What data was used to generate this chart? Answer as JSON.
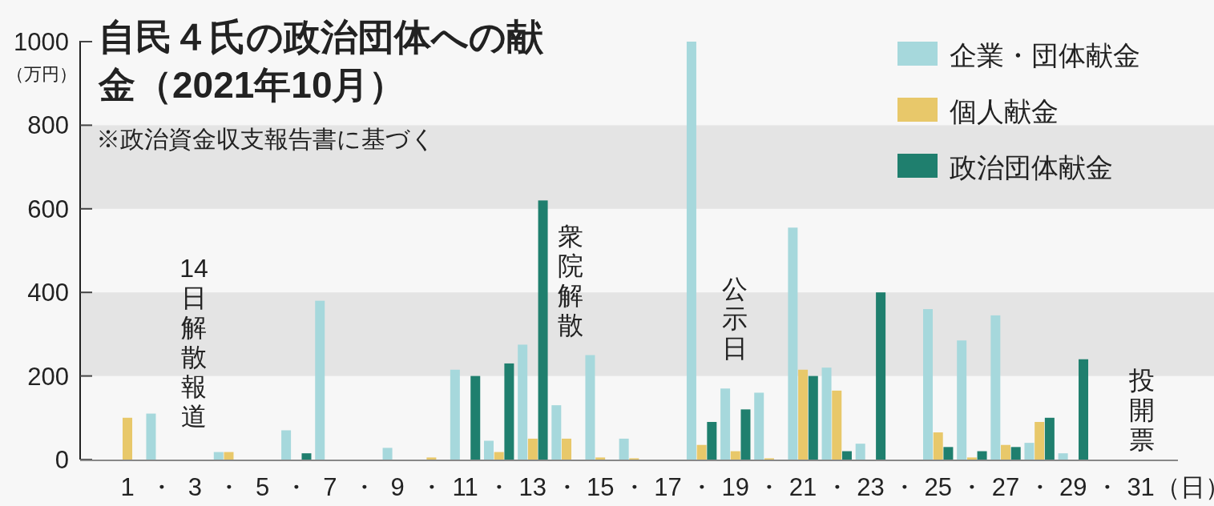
{
  "chart_data": {
    "type": "bar",
    "title": "自民４氏の政治団体への献金（2021年10月）",
    "ylabel": "（万円）",
    "xlabel": "（日）",
    "x": [
      1,
      2,
      3,
      4,
      5,
      6,
      7,
      8,
      9,
      10,
      11,
      12,
      13,
      14,
      15,
      16,
      17,
      18,
      19,
      20,
      21,
      22,
      23,
      24,
      25,
      26,
      27,
      28,
      29,
      30,
      31
    ],
    "xlim": [
      -0.4,
      32.1
    ],
    "xticks": [
      {
        "value": 1,
        "label": "1"
      },
      {
        "value": 2,
        "label": "・"
      },
      {
        "value": 3,
        "label": "3"
      },
      {
        "value": 4,
        "label": "・"
      },
      {
        "value": 5,
        "label": "5"
      },
      {
        "value": 6,
        "label": "・"
      },
      {
        "value": 7,
        "label": "7"
      },
      {
        "value": 8,
        "label": "・"
      },
      {
        "value": 9,
        "label": "9"
      },
      {
        "value": 10,
        "label": "・"
      },
      {
        "value": 11,
        "label": "11"
      },
      {
        "value": 12,
        "label": "・"
      },
      {
        "value": 13,
        "label": "13"
      },
      {
        "value": 14,
        "label": "・"
      },
      {
        "value": 15,
        "label": "15"
      },
      {
        "value": 16,
        "label": "・"
      },
      {
        "value": 17,
        "label": "17"
      },
      {
        "value": 18,
        "label": "・"
      },
      {
        "value": 19,
        "label": "19"
      },
      {
        "value": 20,
        "label": "・"
      },
      {
        "value": 21,
        "label": "21"
      },
      {
        "value": 22,
        "label": "・"
      },
      {
        "value": 23,
        "label": "23"
      },
      {
        "value": 24,
        "label": "・"
      },
      {
        "value": 25,
        "label": "25"
      },
      {
        "value": 26,
        "label": "・"
      },
      {
        "value": 27,
        "label": "27"
      },
      {
        "value": 28,
        "label": "・"
      },
      {
        "value": 29,
        "label": "29"
      },
      {
        "value": 30,
        "label": "・"
      },
      {
        "value": 31,
        "label": "31"
      }
    ],
    "ylim": [
      0,
      1000
    ],
    "yticks": [
      0,
      200,
      400,
      600,
      800,
      1000
    ],
    "grid": false,
    "legend": "top right",
    "series": [
      {
        "name": "企業・団体献金",
        "color": "#a6d8dc",
        "values": [
          0,
          110,
          0,
          18,
          0,
          70,
          380,
          0,
          28,
          0,
          215,
          45,
          275,
          130,
          250,
          50,
          0,
          1000,
          170,
          160,
          555,
          220,
          38,
          0,
          360,
          285,
          345,
          40,
          15,
          0,
          0
        ]
      },
      {
        "name": "個人献金",
        "color": "#e8c86a",
        "values": [
          100,
          0,
          0,
          18,
          0,
          0,
          0,
          0,
          0,
          5,
          0,
          18,
          50,
          50,
          5,
          3,
          0,
          35,
          20,
          3,
          215,
          165,
          0,
          0,
          65,
          5,
          35,
          90,
          0,
          0,
          0
        ]
      },
      {
        "name": "政治団体献金",
        "color": "#1f7f6e",
        "values": [
          0,
          0,
          0,
          0,
          0,
          15,
          0,
          0,
          0,
          0,
          200,
          230,
          620,
          0,
          0,
          0,
          0,
          90,
          120,
          0,
          200,
          20,
          400,
          0,
          30,
          20,
          30,
          100,
          240,
          0,
          0
        ]
      }
    ],
    "bands": [
      {
        "axis": "y",
        "from": 200,
        "to": 400,
        "color": "#e4e4e4"
      },
      {
        "axis": "y",
        "from": 600,
        "to": 800,
        "color": "#e4e4e4"
      }
    ],
    "annotations": [
      "※政治資金収支報告書に基づく",
      "14日解散報道",
      "衆院解散",
      "公示日",
      "投開票"
    ]
  }
}
